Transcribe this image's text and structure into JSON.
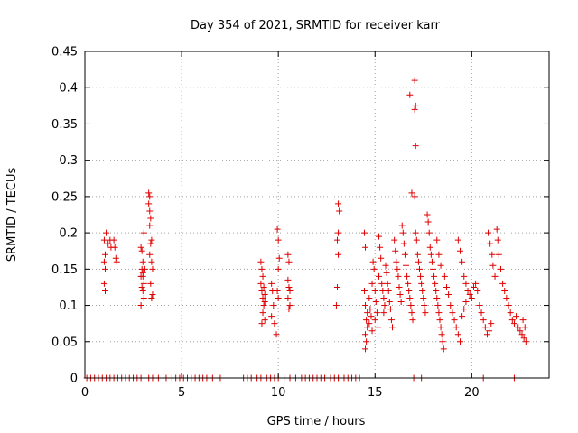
{
  "chart_data": {
    "type": "scatter",
    "title": "Day 354 of 2021, SRMTID for receiver karr",
    "xlabel": "GPS time / hours",
    "ylabel": "SRMTID / TECUs",
    "xlim": [
      0,
      24
    ],
    "ylim": [
      0,
      0.45
    ],
    "grid": true,
    "marker": "plus",
    "color": "#e00000",
    "x_ticks": [
      {
        "value": 0,
        "label": "0"
      },
      {
        "value": 5,
        "label": "5"
      },
      {
        "value": 10,
        "label": "10"
      },
      {
        "value": 15,
        "label": "15"
      },
      {
        "value": 20,
        "label": "20"
      }
    ],
    "y_ticks": [
      {
        "value": 0,
        "label": "0"
      },
      {
        "value": 0.05,
        "label": "0.05"
      },
      {
        "value": 0.1,
        "label": "0.1"
      },
      {
        "value": 0.15,
        "label": "0.15"
      },
      {
        "value": 0.2,
        "label": "0.2"
      },
      {
        "value": 0.25,
        "label": "0.25"
      },
      {
        "value": 0.3,
        "label": "0.3"
      },
      {
        "value": 0.35,
        "label": "0.35"
      },
      {
        "value": 0.4,
        "label": "0.4"
      },
      {
        "value": 0.45,
        "label": "0.45"
      }
    ],
    "series": [
      {
        "name": "SRMTID",
        "points": [
          [
            1.0,
            0.19
          ],
          [
            1.05,
            0.17
          ],
          [
            1.0,
            0.16
          ],
          [
            1.05,
            0.15
          ],
          [
            1.0,
            0.13
          ],
          [
            1.05,
            0.12
          ],
          [
            1.1,
            0.2
          ],
          [
            1.2,
            0.185
          ],
          [
            1.3,
            0.19
          ],
          [
            1.35,
            0.18
          ],
          [
            1.5,
            0.19
          ],
          [
            1.55,
            0.18
          ],
          [
            1.6,
            0.165
          ],
          [
            1.65,
            0.16
          ],
          [
            2.9,
            0.18
          ],
          [
            2.95,
            0.175
          ],
          [
            3.0,
            0.16
          ],
          [
            2.95,
            0.15
          ],
          [
            3.0,
            0.145
          ],
          [
            2.9,
            0.14
          ],
          [
            3.05,
            0.13
          ],
          [
            2.95,
            0.125
          ],
          [
            3.0,
            0.12
          ],
          [
            3.05,
            0.11
          ],
          [
            2.9,
            0.1
          ],
          [
            3.0,
            0.14
          ],
          [
            3.1,
            0.15
          ],
          [
            3.05,
            0.2
          ],
          [
            3.3,
            0.255
          ],
          [
            3.35,
            0.25
          ],
          [
            3.3,
            0.24
          ],
          [
            3.35,
            0.23
          ],
          [
            3.4,
            0.22
          ],
          [
            3.35,
            0.21
          ],
          [
            3.45,
            0.19
          ],
          [
            3.4,
            0.185
          ],
          [
            3.35,
            0.17
          ],
          [
            3.45,
            0.16
          ],
          [
            3.5,
            0.15
          ],
          [
            3.4,
            0.13
          ],
          [
            3.5,
            0.115
          ],
          [
            3.45,
            0.11
          ],
          [
            9.1,
            0.16
          ],
          [
            9.15,
            0.15
          ],
          [
            9.2,
            0.14
          ],
          [
            9.1,
            0.13
          ],
          [
            9.25,
            0.125
          ],
          [
            9.15,
            0.12
          ],
          [
            9.2,
            0.11
          ],
          [
            9.3,
            0.105
          ],
          [
            9.25,
            0.1
          ],
          [
            9.2,
            0.09
          ],
          [
            9.3,
            0.08
          ],
          [
            9.15,
            0.075
          ],
          [
            9.3,
            0.115
          ],
          [
            9.65,
            0.13
          ],
          [
            9.7,
            0.12
          ],
          [
            9.75,
            0.1
          ],
          [
            9.65,
            0.085
          ],
          [
            9.8,
            0.075
          ],
          [
            9.9,
            0.06
          ],
          [
            9.95,
            0.205
          ],
          [
            10.0,
            0.19
          ],
          [
            10.05,
            0.165
          ],
          [
            10.0,
            0.15
          ],
          [
            9.95,
            0.12
          ],
          [
            10.0,
            0.11
          ],
          [
            10.5,
            0.135
          ],
          [
            10.55,
            0.125
          ],
          [
            10.6,
            0.12
          ],
          [
            10.5,
            0.11
          ],
          [
            10.6,
            0.1
          ],
          [
            10.55,
            0.095
          ],
          [
            10.5,
            0.17
          ],
          [
            10.55,
            0.16
          ],
          [
            13.1,
            0.24
          ],
          [
            13.15,
            0.23
          ],
          [
            13.1,
            0.2
          ],
          [
            13.05,
            0.19
          ],
          [
            13.1,
            0.17
          ],
          [
            13.05,
            0.125
          ],
          [
            13.0,
            0.1
          ],
          [
            14.45,
            0.2
          ],
          [
            14.5,
            0.18
          ],
          [
            14.45,
            0.12
          ],
          [
            14.5,
            0.1
          ],
          [
            14.6,
            0.09
          ],
          [
            14.55,
            0.08
          ],
          [
            14.6,
            0.07
          ],
          [
            14.5,
            0.06
          ],
          [
            14.55,
            0.05
          ],
          [
            14.5,
            0.04
          ],
          [
            14.7,
            0.11
          ],
          [
            14.75,
            0.095
          ],
          [
            14.8,
            0.085
          ],
          [
            14.7,
            0.075
          ],
          [
            14.85,
            0.065
          ],
          [
            14.9,
            0.16
          ],
          [
            14.95,
            0.15
          ],
          [
            14.85,
            0.13
          ],
          [
            15.0,
            0.12
          ],
          [
            15.05,
            0.105
          ],
          [
            15.1,
            0.09
          ],
          [
            15.0,
            0.08
          ],
          [
            15.15,
            0.07
          ],
          [
            15.2,
            0.195
          ],
          [
            15.25,
            0.18
          ],
          [
            15.3,
            0.165
          ],
          [
            15.2,
            0.14
          ],
          [
            15.35,
            0.13
          ],
          [
            15.4,
            0.12
          ],
          [
            15.45,
            0.11
          ],
          [
            15.5,
            0.1
          ],
          [
            15.45,
            0.09
          ],
          [
            15.55,
            0.155
          ],
          [
            15.6,
            0.145
          ],
          [
            15.65,
            0.13
          ],
          [
            15.7,
            0.12
          ],
          [
            15.75,
            0.105
          ],
          [
            15.8,
            0.095
          ],
          [
            15.85,
            0.08
          ],
          [
            15.9,
            0.07
          ],
          [
            16.0,
            0.19
          ],
          [
            16.05,
            0.175
          ],
          [
            16.1,
            0.16
          ],
          [
            16.15,
            0.15
          ],
          [
            16.2,
            0.14
          ],
          [
            16.25,
            0.125
          ],
          [
            16.3,
            0.115
          ],
          [
            16.35,
            0.105
          ],
          [
            16.4,
            0.21
          ],
          [
            16.45,
            0.2
          ],
          [
            16.5,
            0.185
          ],
          [
            16.55,
            0.17
          ],
          [
            16.6,
            0.155
          ],
          [
            16.65,
            0.14
          ],
          [
            16.7,
            0.13
          ],
          [
            16.75,
            0.12
          ],
          [
            16.8,
            0.11
          ],
          [
            16.85,
            0.1
          ],
          [
            16.9,
            0.09
          ],
          [
            16.95,
            0.08
          ],
          [
            16.8,
            0.39
          ],
          [
            17.05,
            0.41
          ],
          [
            17.1,
            0.375
          ],
          [
            17.05,
            0.37
          ],
          [
            17.1,
            0.32
          ],
          [
            16.9,
            0.255
          ],
          [
            17.05,
            0.25
          ],
          [
            17.1,
            0.2
          ],
          [
            17.15,
            0.19
          ],
          [
            17.2,
            0.17
          ],
          [
            17.25,
            0.16
          ],
          [
            17.3,
            0.15
          ],
          [
            17.35,
            0.14
          ],
          [
            17.4,
            0.13
          ],
          [
            17.45,
            0.12
          ],
          [
            17.5,
            0.11
          ],
          [
            17.55,
            0.1
          ],
          [
            17.6,
            0.09
          ],
          [
            17.7,
            0.225
          ],
          [
            17.75,
            0.215
          ],
          [
            17.8,
            0.2
          ],
          [
            17.85,
            0.18
          ],
          [
            17.9,
            0.17
          ],
          [
            17.95,
            0.16
          ],
          [
            18.0,
            0.15
          ],
          [
            18.05,
            0.14
          ],
          [
            18.1,
            0.13
          ],
          [
            18.15,
            0.12
          ],
          [
            18.2,
            0.11
          ],
          [
            18.25,
            0.1
          ],
          [
            18.3,
            0.09
          ],
          [
            18.35,
            0.08
          ],
          [
            18.4,
            0.07
          ],
          [
            18.45,
            0.06
          ],
          [
            18.5,
            0.05
          ],
          [
            18.55,
            0.04
          ],
          [
            18.2,
            0.19
          ],
          [
            18.3,
            0.17
          ],
          [
            18.4,
            0.155
          ],
          [
            18.6,
            0.14
          ],
          [
            18.7,
            0.125
          ],
          [
            18.8,
            0.115
          ],
          [
            18.9,
            0.1
          ],
          [
            19.0,
            0.09
          ],
          [
            19.1,
            0.08
          ],
          [
            19.2,
            0.07
          ],
          [
            19.3,
            0.06
          ],
          [
            19.4,
            0.05
          ],
          [
            19.5,
            0.085
          ],
          [
            19.6,
            0.095
          ],
          [
            19.7,
            0.105
          ],
          [
            19.3,
            0.19
          ],
          [
            19.4,
            0.175
          ],
          [
            19.5,
            0.16
          ],
          [
            19.6,
            0.14
          ],
          [
            19.7,
            0.13
          ],
          [
            19.8,
            0.12
          ],
          [
            19.9,
            0.115
          ],
          [
            20.0,
            0.11
          ],
          [
            20.1,
            0.125
          ],
          [
            20.2,
            0.13
          ],
          [
            20.3,
            0.12
          ],
          [
            20.4,
            0.1
          ],
          [
            20.5,
            0.09
          ],
          [
            20.6,
            0.08
          ],
          [
            20.7,
            0.07
          ],
          [
            20.8,
            0.06
          ],
          [
            20.9,
            0.065
          ],
          [
            21.0,
            0.075
          ],
          [
            20.85,
            0.2
          ],
          [
            20.95,
            0.185
          ],
          [
            21.05,
            0.17
          ],
          [
            21.1,
            0.155
          ],
          [
            21.2,
            0.14
          ],
          [
            21.3,
            0.205
          ],
          [
            21.35,
            0.19
          ],
          [
            21.4,
            0.17
          ],
          [
            21.5,
            0.15
          ],
          [
            21.6,
            0.13
          ],
          [
            21.7,
            0.12
          ],
          [
            21.8,
            0.11
          ],
          [
            21.9,
            0.1
          ],
          [
            22.0,
            0.09
          ],
          [
            22.1,
            0.08
          ],
          [
            22.2,
            0.075
          ],
          [
            22.3,
            0.085
          ],
          [
            22.4,
            0.07
          ],
          [
            22.5,
            0.065
          ],
          [
            22.6,
            0.06
          ],
          [
            22.7,
            0.055
          ],
          [
            22.8,
            0.05
          ],
          [
            22.65,
            0.08
          ],
          [
            22.75,
            0.07
          ],
          [
            0.1,
            0
          ],
          [
            0.3,
            0
          ],
          [
            0.5,
            0
          ],
          [
            0.7,
            0
          ],
          [
            0.9,
            0
          ],
          [
            1.1,
            0
          ],
          [
            1.3,
            0
          ],
          [
            1.5,
            0
          ],
          [
            1.7,
            0
          ],
          [
            1.9,
            0
          ],
          [
            2.1,
            0
          ],
          [
            2.3,
            0
          ],
          [
            2.5,
            0
          ],
          [
            2.7,
            0
          ],
          [
            2.9,
            0
          ],
          [
            3.3,
            0
          ],
          [
            3.5,
            0
          ],
          [
            3.8,
            0
          ],
          [
            4.2,
            0
          ],
          [
            4.5,
            0
          ],
          [
            4.7,
            0
          ],
          [
            4.9,
            0
          ],
          [
            5.1,
            0
          ],
          [
            5.3,
            0
          ],
          [
            5.5,
            0
          ],
          [
            5.7,
            0
          ],
          [
            5.9,
            0
          ],
          [
            6.1,
            0
          ],
          [
            6.3,
            0
          ],
          [
            6.6,
            0
          ],
          [
            7.0,
            0
          ],
          [
            8.2,
            0
          ],
          [
            8.4,
            0
          ],
          [
            8.6,
            0
          ],
          [
            8.9,
            0
          ],
          [
            9.1,
            0
          ],
          [
            9.4,
            0
          ],
          [
            9.6,
            0
          ],
          [
            9.8,
            0
          ],
          [
            10.0,
            0
          ],
          [
            10.3,
            0
          ],
          [
            10.6,
            0
          ],
          [
            10.9,
            0
          ],
          [
            11.2,
            0
          ],
          [
            11.4,
            0
          ],
          [
            11.6,
            0
          ],
          [
            11.8,
            0
          ],
          [
            12.0,
            0
          ],
          [
            12.2,
            0
          ],
          [
            12.4,
            0
          ],
          [
            12.7,
            0
          ],
          [
            12.9,
            0
          ],
          [
            13.1,
            0
          ],
          [
            13.4,
            0
          ],
          [
            13.6,
            0
          ],
          [
            13.8,
            0
          ],
          [
            14.0,
            0
          ],
          [
            14.2,
            0
          ],
          [
            17.0,
            0
          ],
          [
            17.4,
            0
          ],
          [
            20.6,
            0
          ],
          [
            22.2,
            0
          ]
        ]
      }
    ]
  }
}
